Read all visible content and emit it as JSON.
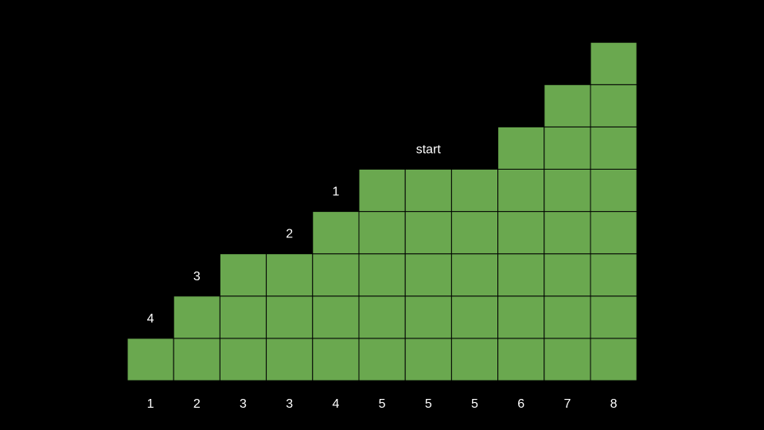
{
  "colors": {
    "background": "#000000",
    "cell_fill": "#6aa84f",
    "cell_border": "#000000",
    "text": "#ffffff"
  },
  "columns": [
    {
      "height": 1,
      "bottom_label": "1"
    },
    {
      "height": 2,
      "bottom_label": "2"
    },
    {
      "height": 3,
      "bottom_label": "3"
    },
    {
      "height": 3,
      "bottom_label": "3"
    },
    {
      "height": 4,
      "bottom_label": "4"
    },
    {
      "height": 5,
      "bottom_label": "5"
    },
    {
      "height": 5,
      "bottom_label": "5"
    },
    {
      "height": 5,
      "bottom_label": "5"
    },
    {
      "height": 6,
      "bottom_label": "6"
    },
    {
      "height": 7,
      "bottom_label": "7"
    },
    {
      "height": 8,
      "bottom_label": "8"
    }
  ],
  "annotations": [
    {
      "text": "4",
      "column": 0
    },
    {
      "text": "3",
      "column": 1
    },
    {
      "text": "2",
      "column": 3
    },
    {
      "text": "1",
      "column": 4
    },
    {
      "text": "start",
      "column": 6
    }
  ]
}
